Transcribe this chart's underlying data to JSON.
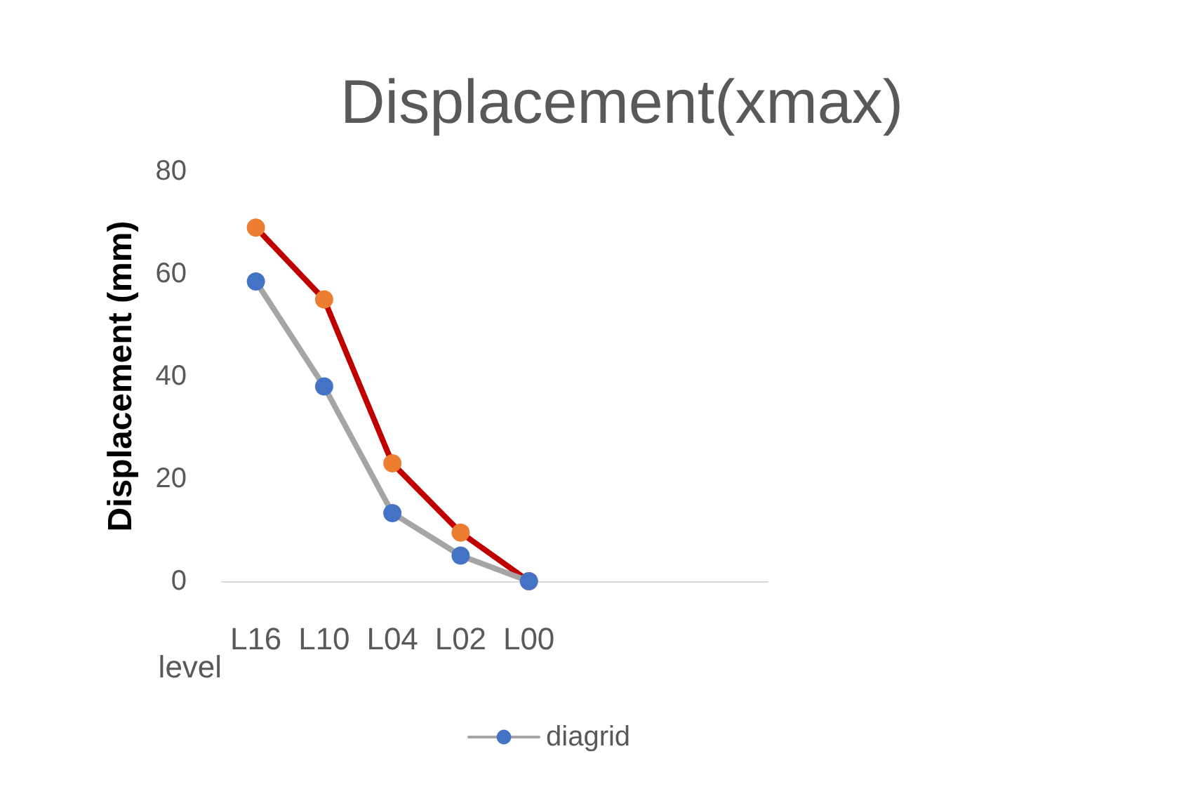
{
  "chart_data": {
    "type": "line",
    "title": "Displacement(xmax)",
    "xlabel": "level",
    "ylabel": "Displacement (mm)",
    "categories": [
      "L16",
      "L10",
      "L04",
      "L02",
      "L00",
      null,
      null,
      null
    ],
    "series": [
      {
        "color": "#c00000",
        "colors": [
          "#ed7d31",
          "#ed7d31",
          "#ed7d31",
          "#ed7d31",
          "#ed7d31",
          null,
          null,
          null
        ],
        "values": [
          69,
          55,
          23,
          9.5,
          0,
          null,
          null,
          null
        ]
      },
      {
        "name": "diagrid",
        "color": "#a5a5a5",
        "colors": [
          "#4472c4",
          "#4472c4",
          "#4472c4",
          "#4472c4",
          "#4472c4",
          null,
          null,
          null
        ],
        "values": [
          58.5,
          38,
          13.3,
          5,
          0,
          null,
          null,
          null
        ]
      }
    ],
    "ylim": [
      0,
      80
    ],
    "yticks": [
      0,
      20,
      40,
      60,
      80
    ],
    "grid": false,
    "legend": "bottom",
    "marker": "circle",
    "line_style": "solid"
  }
}
